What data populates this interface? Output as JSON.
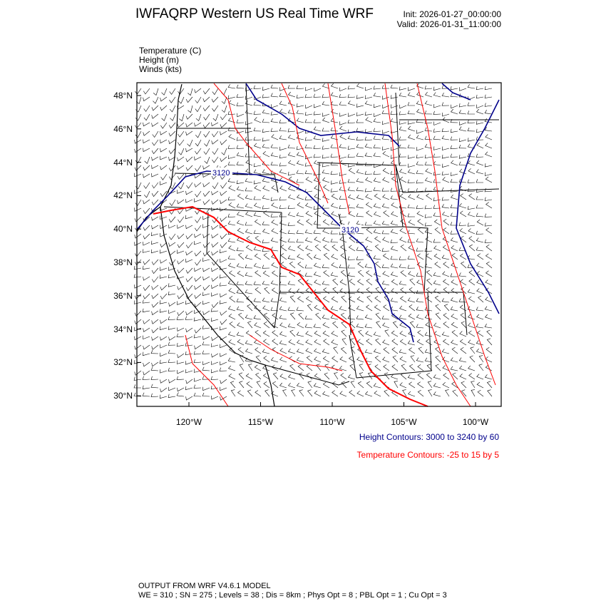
{
  "title": "IWFAQRP Western US Real Time WRF",
  "init": "Init: 2026-01-27_00:00:00",
  "valid": "Valid: 2026-01-31_11:00:00",
  "fields": [
    "Temperature   (C)",
    "Height   (m)",
    "Winds   (kts)"
  ],
  "lat_ticks": [
    "48°N",
    "46°N",
    "44°N",
    "42°N",
    "40°N",
    "38°N",
    "36°N",
    "34°N",
    "32°N",
    "30°N"
  ],
  "lon_ticks": [
    "120°W",
    "115°W",
    "110°W",
    "105°W",
    "100°W"
  ],
  "contour_labels": [
    "3120",
    "3120"
  ],
  "height_contours": "Height Contours: 3000 to 3240 by 60",
  "temperature_contours": "Temperature Contours: -25 to 15 by 5",
  "footer": [
    "OUTPUT FROM WRF V4.6.1 MODEL",
    "WE = 310 ; SN = 275 ; Levels = 38 ; Dis = 8km ; Phys Opt = 8 ; PBL Opt = 1 ; Cu Opt = 3"
  ],
  "colors": {
    "height": "#00008b",
    "temperature": "#ff0000"
  }
}
